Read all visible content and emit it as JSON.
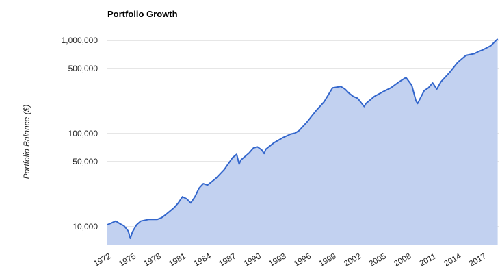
{
  "chart_data": {
    "type": "area",
    "title": "Portfolio Growth",
    "xlabel": "",
    "ylabel": "Portfolio Balance ($)",
    "y_scale": "log",
    "ylim": [
      7400,
      1100000
    ],
    "xlim": [
      1972.0,
      2019.0
    ],
    "grid": true,
    "legend": "none",
    "y_ticks": [
      {
        "value": 10000,
        "label": "10,000"
      },
      {
        "value": 50000,
        "label": "50,000"
      },
      {
        "value": 100000,
        "label": "100,000"
      },
      {
        "value": 500000,
        "label": "500,000"
      },
      {
        "value": 1000000,
        "label": "1,000,000"
      }
    ],
    "x_ticks": [
      {
        "value": 1972,
        "label": "1972"
      },
      {
        "value": 1975,
        "label": "1975"
      },
      {
        "value": 1978,
        "label": "1978"
      },
      {
        "value": 1981,
        "label": "1981"
      },
      {
        "value": 1984,
        "label": "1984"
      },
      {
        "value": 1987,
        "label": "1987"
      },
      {
        "value": 1990,
        "label": "1990"
      },
      {
        "value": 1993,
        "label": "1993"
      },
      {
        "value": 1996,
        "label": "1996"
      },
      {
        "value": 1999,
        "label": "1999"
      },
      {
        "value": 2002,
        "label": "2002"
      },
      {
        "value": 2005,
        "label": "2005"
      },
      {
        "value": 2008,
        "label": "2008"
      },
      {
        "value": 2011,
        "label": "2011"
      },
      {
        "value": 2014,
        "label": "2014"
      },
      {
        "value": 2017,
        "label": "2017"
      }
    ],
    "series": [
      {
        "x": [
          1972.0,
          1972.5,
          1973.0,
          1973.5,
          1974.0,
          1974.5,
          1974.75,
          1975.0,
          1975.5,
          1976.0,
          1977.0,
          1978.0,
          1978.5,
          1979.0,
          1980.0,
          1980.5,
          1981.0,
          1981.5,
          1982.0,
          1982.5,
          1983.0,
          1983.5,
          1984.0,
          1985.0,
          1986.0,
          1987.0,
          1987.5,
          1987.8,
          1988.0,
          1989.0,
          1989.5,
          1990.0,
          1990.5,
          1990.8,
          1991.0,
          1992.0,
          1993.0,
          1994.0,
          1994.5,
          1995.0,
          1996.0,
          1997.0,
          1998.0,
          1998.6,
          1999.0,
          2000.0,
          2000.5,
          2001.0,
          2001.5,
          2002.0,
          2002.8,
          2003.0,
          2004.0,
          2005.0,
          2006.0,
          2007.0,
          2007.8,
          2008.5,
          2009.0,
          2009.2,
          2010.0,
          2010.5,
          2011.0,
          2011.5,
          2012.0,
          2013.0,
          2014.0,
          2015.0,
          2016.0,
          2016.5,
          2017.0,
          2018.0,
          2018.8
        ],
        "values": [
          10500,
          11000,
          11500,
          10800,
          10200,
          9000,
          7500,
          8800,
          10500,
          11500,
          12000,
          12000,
          12500,
          13500,
          16000,
          18000,
          21000,
          20000,
          18000,
          21000,
          26000,
          29000,
          28000,
          33000,
          41000,
          55000,
          60000,
          47000,
          52000,
          62000,
          70000,
          72000,
          67000,
          61000,
          68000,
          80000,
          90000,
          99000,
          101000,
          108000,
          135000,
          175000,
          220000,
          270000,
          310000,
          320000,
          300000,
          270000,
          250000,
          240000,
          195000,
          210000,
          250000,
          280000,
          310000,
          360000,
          400000,
          330000,
          225000,
          210000,
          290000,
          310000,
          350000,
          300000,
          360000,
          450000,
          580000,
          690000,
          720000,
          760000,
          790000,
          880000,
          1040000
        ]
      }
    ]
  }
}
